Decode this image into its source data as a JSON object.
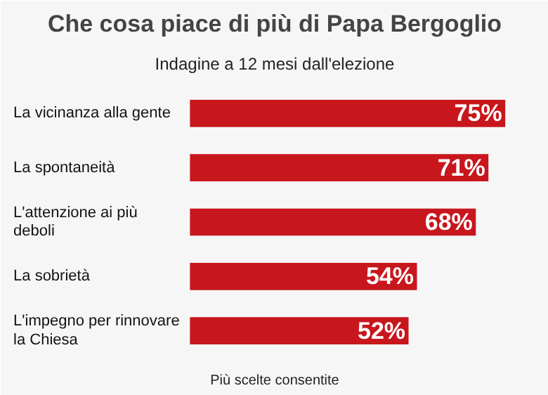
{
  "chart_data": {
    "type": "bar",
    "orientation": "horizontal",
    "title": "Che cosa piace di più di Papa Bergoglio",
    "subtitle": "Indagine a 12 mesi dall'elezione",
    "categories": [
      "La vicinanza alla gente",
      "La spontaneità",
      "L'attenzione ai più deboli",
      "La sobrietà",
      "L'impegno per rinnovare la Chiesa"
    ],
    "values": [
      75,
      71,
      68,
      54,
      52
    ],
    "value_labels": [
      "75%",
      "71%",
      "68%",
      "54%",
      "52%"
    ],
    "color": "#c8161d",
    "annotations": [
      "Più scelte consentite"
    ]
  }
}
